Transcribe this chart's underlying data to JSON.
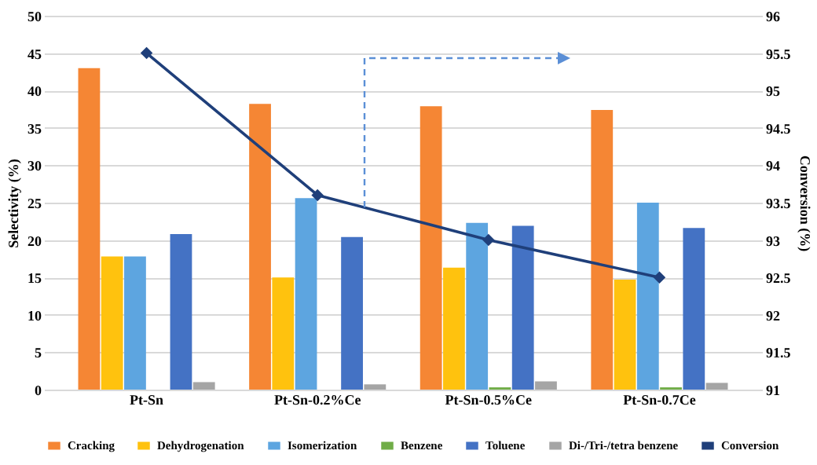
{
  "chart_data": {
    "type": "bar",
    "ylabel": "Selectivity (%)",
    "y2label": "Conversion (%)",
    "categories": [
      "Pt-Sn",
      "Pt-Sn-0.2%Ce",
      "Pt-Sn-0.5%Ce",
      "Pt-Sn-0.7Ce"
    ],
    "series": [
      {
        "name": "Cracking",
        "color": "#f58634",
        "values": [
          43,
          38.2,
          37.9,
          37.4
        ]
      },
      {
        "name": "Dehydrogenation",
        "color": "#ffc20e",
        "values": [
          17.8,
          15,
          16.3,
          14.7
        ]
      },
      {
        "name": "Isomerization",
        "color": "#5da5e0",
        "values": [
          17.8,
          25.6,
          22.3,
          25
        ]
      },
      {
        "name": "Benzene",
        "color": "#70ad47",
        "values": [
          0,
          0,
          0.3,
          0.3
        ]
      },
      {
        "name": "Toluene",
        "color": "#4472c4",
        "values": [
          20.8,
          20.4,
          21.9,
          21.6
        ]
      },
      {
        "name": "Di-/Tri-/tetra benzene",
        "color": "#a5a5a5",
        "values": [
          1,
          0.7,
          1.1,
          0.9
        ]
      },
      {
        "name": "Conversion",
        "color": "#1f3f7a",
        "type": "line",
        "axis": "y2",
        "marker": "diamond",
        "values": [
          95.5,
          93.6,
          93,
          92.5
        ]
      }
    ],
    "ylim": [
      0,
      50
    ],
    "yticks": [
      0,
      5,
      10,
      15,
      20,
      25,
      30,
      35,
      40,
      45,
      50
    ],
    "y2lim": [
      91,
      96
    ],
    "y2ticks": [
      91,
      91.5,
      92,
      92.5,
      93,
      93.5,
      94,
      94.5,
      95,
      95.5,
      96
    ],
    "grid": "y",
    "legend": "bottom"
  }
}
